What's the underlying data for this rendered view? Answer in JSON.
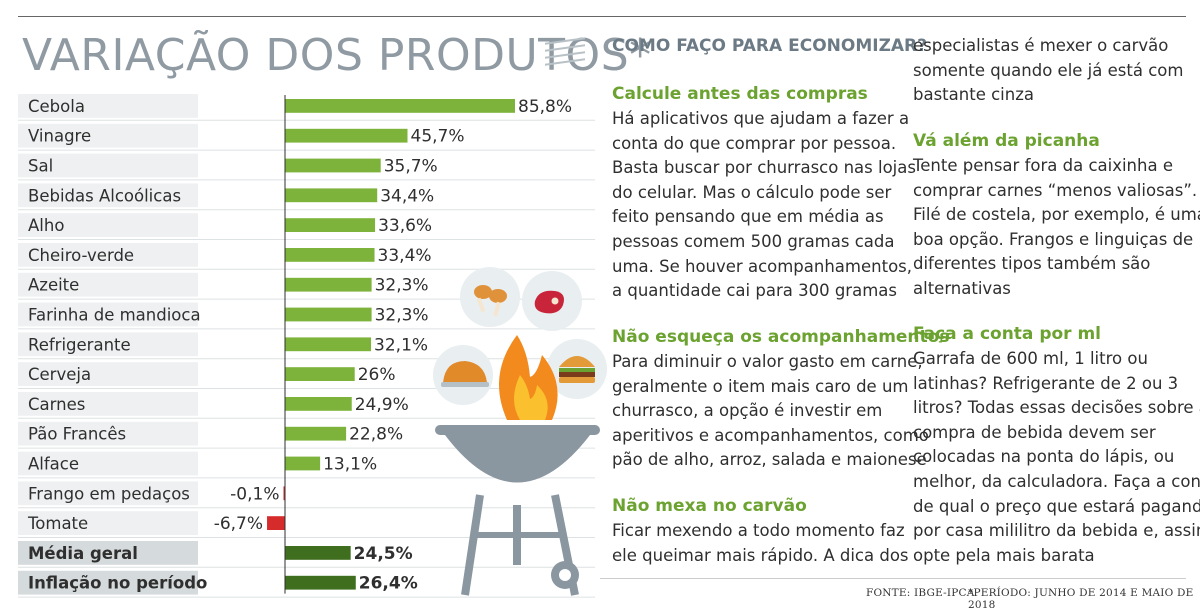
{
  "title": "VARIAÇÃO DOS PRODUTOS*",
  "chart_data": {
    "type": "bar",
    "orientation": "horizontal",
    "categories": [
      "Cebola",
      "Vinagre",
      "Sal",
      "Bebidas Alcoólicas",
      "Alho",
      "Cheiro-verde",
      "Azeite",
      "Farinha de mandioca",
      "Refrigerante",
      "Cerveja",
      "Carnes",
      "Pão Francês",
      "Alface",
      "Frango em pedaços",
      "Tomate",
      "Média geral",
      "Inflação no período"
    ],
    "values": [
      85.8,
      45.7,
      35.7,
      34.4,
      33.6,
      33.4,
      32.3,
      32.3,
      32.1,
      26,
      24.9,
      22.8,
      13.1,
      -0.1,
      -6.7,
      24.5,
      26.4
    ],
    "value_labels": [
      "85,8%",
      "45,7%",
      "35,7%",
      "34,4%",
      "33,6%",
      "33,4%",
      "32,3%",
      "32,3%",
      "32,1%",
      "26%",
      "24,9%",
      "22,8%",
      "13,1%",
      "-0,1%",
      "-6,7%",
      "24,5%",
      "26,4%"
    ],
    "bold_rows": [
      15,
      16
    ],
    "colors": {
      "positive": "#7db33a",
      "summary": "#3f6e1f",
      "negative": "#d62b2b",
      "row_shade": "#eef0f1"
    }
  },
  "sections": {
    "header": "COMO FAÇO PARA ECONOMIZAR?",
    "s1_title": "Calcule antes das compras",
    "s1_lines": [
      "Há aplicativos que ajudam a fazer a",
      "conta do que comprar por pessoa.",
      "Basta buscar por churrasco nas lojas",
      "do celular. Mas o cálculo pode ser",
      "feito pensando que em média as",
      "pessoas comem 500 gramas cada",
      "uma. Se houver acompanhamentos,",
      "a quantidade cai para 300 gramas"
    ],
    "s2_title": "Não esqueça os acompanhamentos",
    "s2_lines": [
      "Para diminuir o valor gasto em carne,",
      "geralmente o item mais caro de um",
      "churrasco, a opção é investir em",
      "aperitivos e acompanhamentos, como",
      "pão de alho, arroz, salada e maionese"
    ],
    "s3_title": "Não mexa no carvão",
    "s3_lines": [
      "Ficar mexendo a todo momento faz",
      "ele queimar mais rápido. A dica dos"
    ],
    "s3_cont_lines": [
      "especialistas é mexer o carvão",
      "somente quando ele já está com",
      "bastante cinza"
    ],
    "s4_title": "Vá além da picanha",
    "s4_lines": [
      "Tente pensar fora da caixinha e",
      "comprar carnes “menos valiosas”.",
      "Filé de costela, por exemplo, é uma",
      "boa opção. Frangos e linguiças de",
      "diferentes tipos também são",
      "alternativas"
    ],
    "s5_title": "Faça a conta por ml",
    "s5_lines": [
      "Garrafa de 600 ml, 1 litro ou",
      "latinhas? Refrigerante de 2 ou 3",
      "litros? Todas essas decisões sobre a",
      "compra de bebida devem ser",
      "colocadas na ponta do lápis, ou",
      "melhor, da calculadora. Faça a conta",
      "de qual o preço que estará pagando",
      "por casa mililitro da bebida e, assim,",
      "opte pela mais barata"
    ]
  },
  "footer": {
    "source": "FONTE: IBGE-IPCA",
    "period": "*PERÍODO: JUNHO DE 2014 E MAIO DE 2018"
  },
  "icons": [
    "chicken-legs-icon",
    "steak-icon",
    "roast-chicken-icon",
    "burger-icon",
    "barbecue-grill-icon"
  ]
}
